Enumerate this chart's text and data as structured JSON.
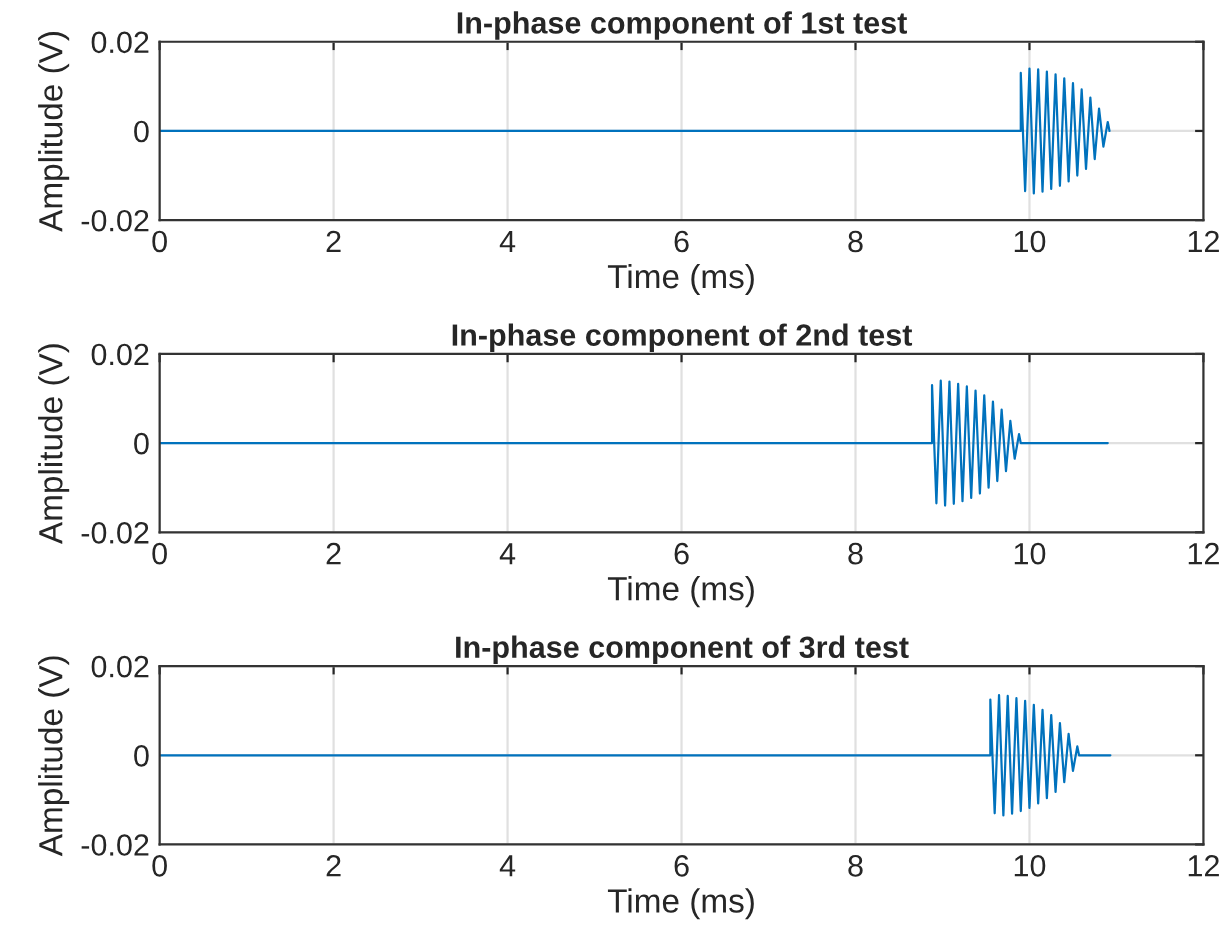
{
  "chart_data": [
    {
      "type": "line",
      "title": "In-phase component of 1st test",
      "xlabel": "Time (ms)",
      "ylabel": "Amplitude (V)",
      "xlim": [
        0,
        12
      ],
      "xticks": [
        0,
        2,
        4,
        6,
        8,
        10,
        12
      ],
      "ylim": [
        -0.02,
        0.02
      ],
      "yticks": [
        -0.02,
        0,
        0.02
      ],
      "grid": true,
      "series": [
        {
          "color": "#0072bd",
          "x": [
            0,
            9.9,
            9.9,
            9.95,
            10.0,
            10.05,
            10.1,
            10.15,
            10.2,
            10.25,
            10.3,
            10.35,
            10.4,
            10.45,
            10.5,
            10.55,
            10.6,
            10.65,
            10.7,
            10.75,
            10.8,
            10.85,
            10.9,
            10.92
          ],
          "values": [
            0,
            0,
            0.013,
            -0.0135,
            0.014,
            -0.014,
            0.0138,
            -0.0136,
            0.0133,
            -0.013,
            0.0127,
            -0.0123,
            0.0118,
            -0.0113,
            0.0107,
            -0.01,
            0.0093,
            -0.0085,
            0.0075,
            -0.0063,
            0.005,
            -0.0035,
            0.002,
            0
          ]
        }
      ]
    },
    {
      "type": "line",
      "title": "In-phase component of 2nd test",
      "xlabel": "Time (ms)",
      "ylabel": "Amplitude (V)",
      "xlim": [
        0,
        12
      ],
      "xticks": [
        0,
        2,
        4,
        6,
        8,
        10,
        12
      ],
      "ylim": [
        -0.02,
        0.02
      ],
      "yticks": [
        -0.02,
        0,
        0.02
      ],
      "grid": true,
      "series": [
        {
          "color": "#0072bd",
          "x": [
            0,
            8.88,
            8.88,
            8.93,
            8.98,
            9.03,
            9.08,
            9.13,
            9.18,
            9.23,
            9.28,
            9.33,
            9.38,
            9.43,
            9.48,
            9.53,
            9.58,
            9.63,
            9.68,
            9.73,
            9.78,
            9.83,
            9.88,
            9.9,
            10.9
          ],
          "values": [
            0,
            0,
            0.013,
            -0.0135,
            0.014,
            -0.014,
            0.0138,
            -0.0136,
            0.0133,
            -0.013,
            0.0127,
            -0.0123,
            0.0118,
            -0.0113,
            0.0107,
            -0.01,
            0.0093,
            -0.0085,
            0.0075,
            -0.0063,
            0.005,
            -0.0035,
            0.002,
            0,
            0
          ]
        }
      ]
    },
    {
      "type": "line",
      "title": "In-phase component of 3rd test",
      "xlabel": "Time (ms)",
      "ylabel": "Amplitude (V)",
      "xlim": [
        0,
        12
      ],
      "xticks": [
        0,
        2,
        4,
        6,
        8,
        10,
        12
      ],
      "ylim": [
        -0.02,
        0.02
      ],
      "yticks": [
        -0.02,
        0,
        0.02
      ],
      "grid": true,
      "series": [
        {
          "color": "#0072bd",
          "x": [
            0,
            9.55,
            9.55,
            9.6,
            9.65,
            9.7,
            9.75,
            9.8,
            9.85,
            9.9,
            9.95,
            10.0,
            10.05,
            10.1,
            10.15,
            10.2,
            10.25,
            10.3,
            10.35,
            10.4,
            10.45,
            10.5,
            10.55,
            10.57,
            10.93
          ],
          "values": [
            0,
            0,
            0.0125,
            -0.013,
            0.0135,
            -0.0135,
            0.0133,
            -0.0131,
            0.0128,
            -0.0125,
            0.0122,
            -0.0118,
            0.0113,
            -0.0108,
            0.0102,
            -0.0096,
            0.009,
            -0.0082,
            0.0072,
            -0.006,
            0.0048,
            -0.0035,
            0.002,
            0,
            0
          ]
        }
      ]
    }
  ]
}
